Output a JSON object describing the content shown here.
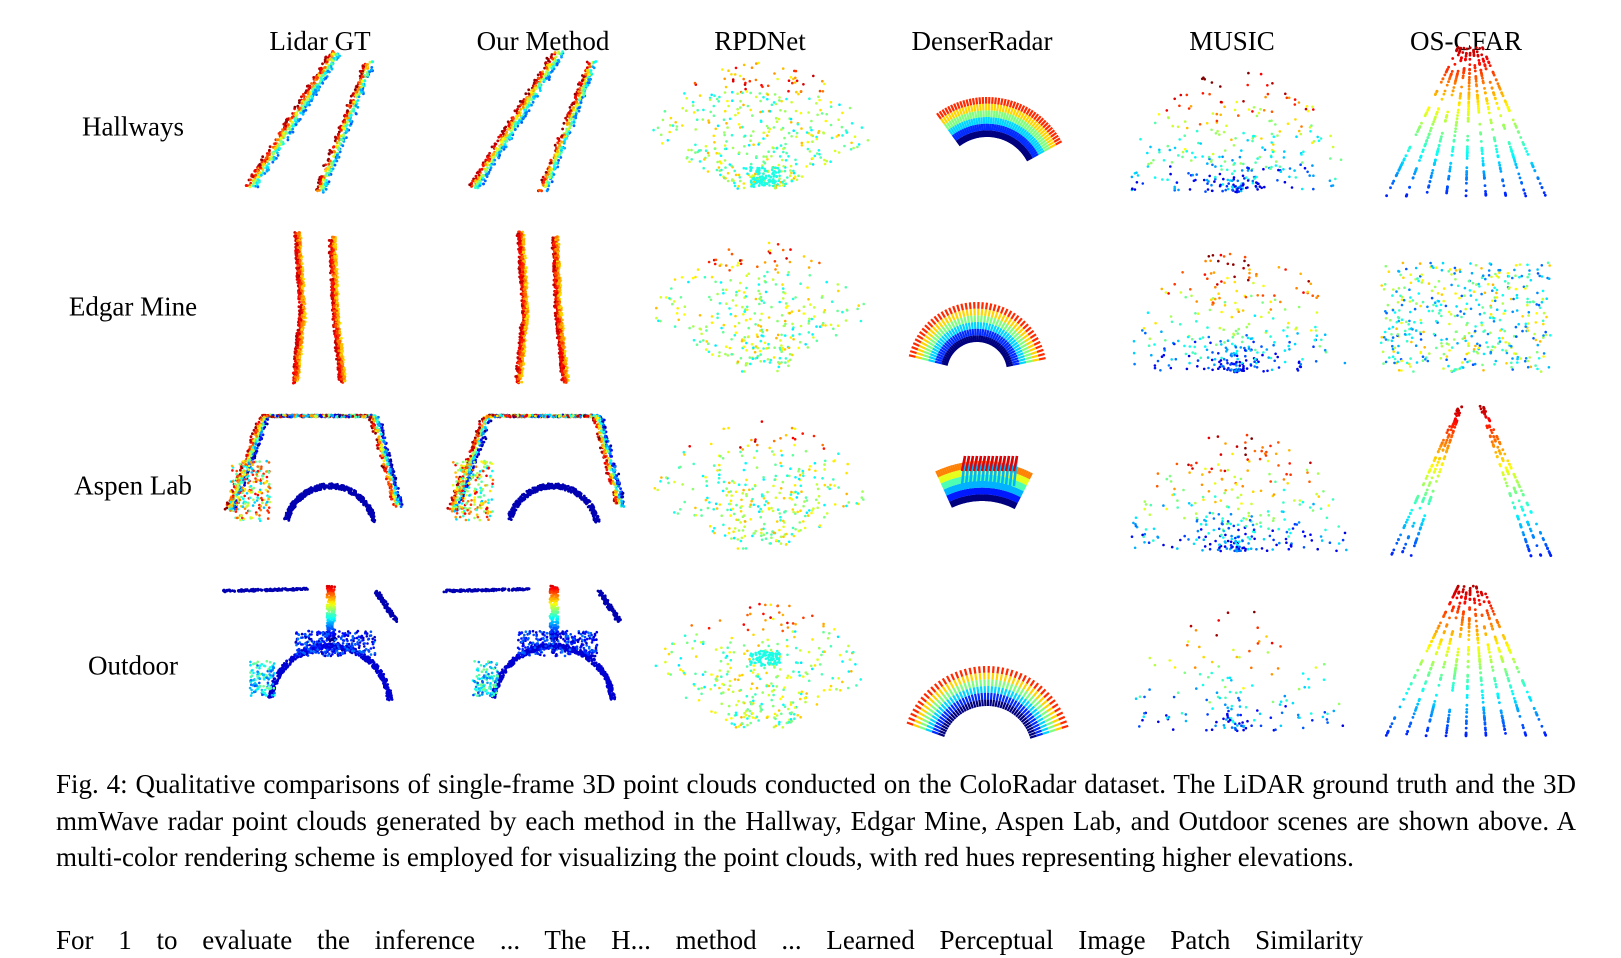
{
  "figure": {
    "columns": [
      "Lidar GT",
      "Our Method",
      "RPDNet",
      "DenserRadar",
      "MUSIC",
      "OS-CFAR"
    ],
    "rows": [
      "Hallways",
      "Edgar Mine",
      "Aspen Lab",
      "Outdoor"
    ],
    "colormap": "jet (red = higher elevation)",
    "caption": "Fig. 4: Qualitative comparisons of single-frame 3D point clouds conducted on the ColoRadar dataset. The LiDAR ground truth and the 3D mmWave radar point clouds generated by each method in the Hallway, Edgar Mine, Aspen Lab, and Outdoor scenes are shown above. A multi-color rendering scheme is employed for visualizing the point clouds, with red hues representing higher elevations."
  },
  "next_paragraph_partial": "For 1 to evaluate the inference ... The H... method ... Learned Perceptual Image Patch Similarity"
}
